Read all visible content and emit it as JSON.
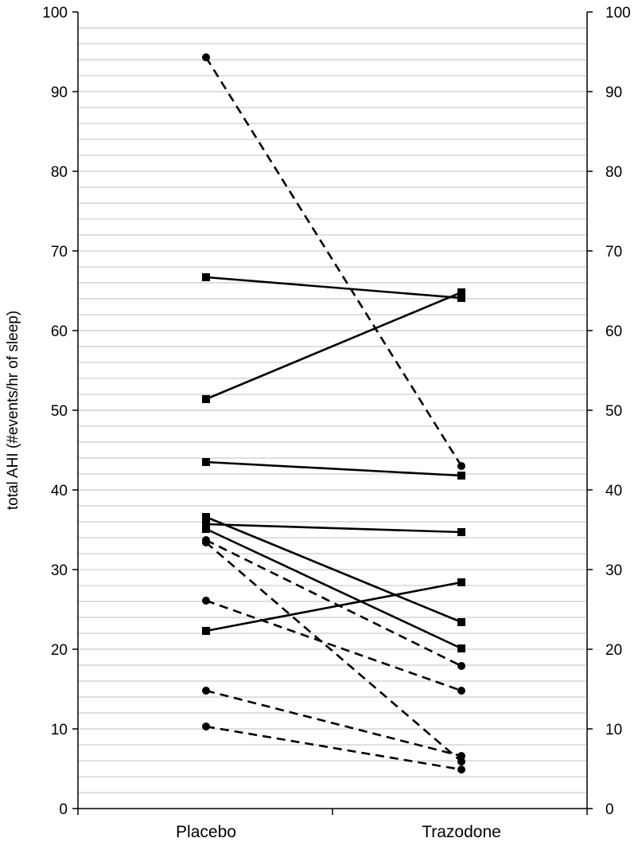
{
  "chart_data": {
    "type": "line",
    "categories": [
      "Placebo",
      "Trazodone"
    ],
    "ylabel": "total AHI (#events/hr of sleep)",
    "ylim": [
      0,
      100
    ],
    "y_ticks": [
      "0",
      "10",
      "20",
      "30",
      "40",
      "50",
      "60",
      "70",
      "80",
      "90",
      "100"
    ],
    "y_minor_step": 2,
    "grid": true,
    "secondary_y_axis": true,
    "series": [
      {
        "marker": "square",
        "line_style": "solid",
        "values": [
          66.7,
          64.1
        ]
      },
      {
        "marker": "square",
        "line_style": "solid",
        "values": [
          51.4,
          64.8
        ]
      },
      {
        "marker": "square",
        "line_style": "solid",
        "values": [
          43.5,
          41.8
        ]
      },
      {
        "marker": "square",
        "line_style": "solid",
        "values": [
          36.6,
          23.4
        ]
      },
      {
        "marker": "square",
        "line_style": "solid",
        "values": [
          35.7,
          34.7
        ]
      },
      {
        "marker": "square",
        "line_style": "solid",
        "values": [
          35.1,
          20.1
        ]
      },
      {
        "marker": "square",
        "line_style": "solid",
        "values": [
          22.3,
          28.4
        ]
      },
      {
        "marker": "circle",
        "line_style": "dashed",
        "values": [
          94.3,
          43.0
        ]
      },
      {
        "marker": "circle",
        "line_style": "dashed",
        "values": [
          33.7,
          17.9
        ]
      },
      {
        "marker": "circle",
        "line_style": "dashed",
        "values": [
          33.4,
          5.9
        ]
      },
      {
        "marker": "circle",
        "line_style": "dashed",
        "values": [
          26.1,
          14.8
        ]
      },
      {
        "marker": "circle",
        "line_style": "dashed",
        "values": [
          14.8,
          6.6
        ]
      },
      {
        "marker": "circle",
        "line_style": "dashed",
        "values": [
          10.3,
          4.9
        ]
      }
    ],
    "colors": {
      "line": "#000000",
      "grid": "#bfbfbf",
      "axis": "#000000"
    }
  }
}
